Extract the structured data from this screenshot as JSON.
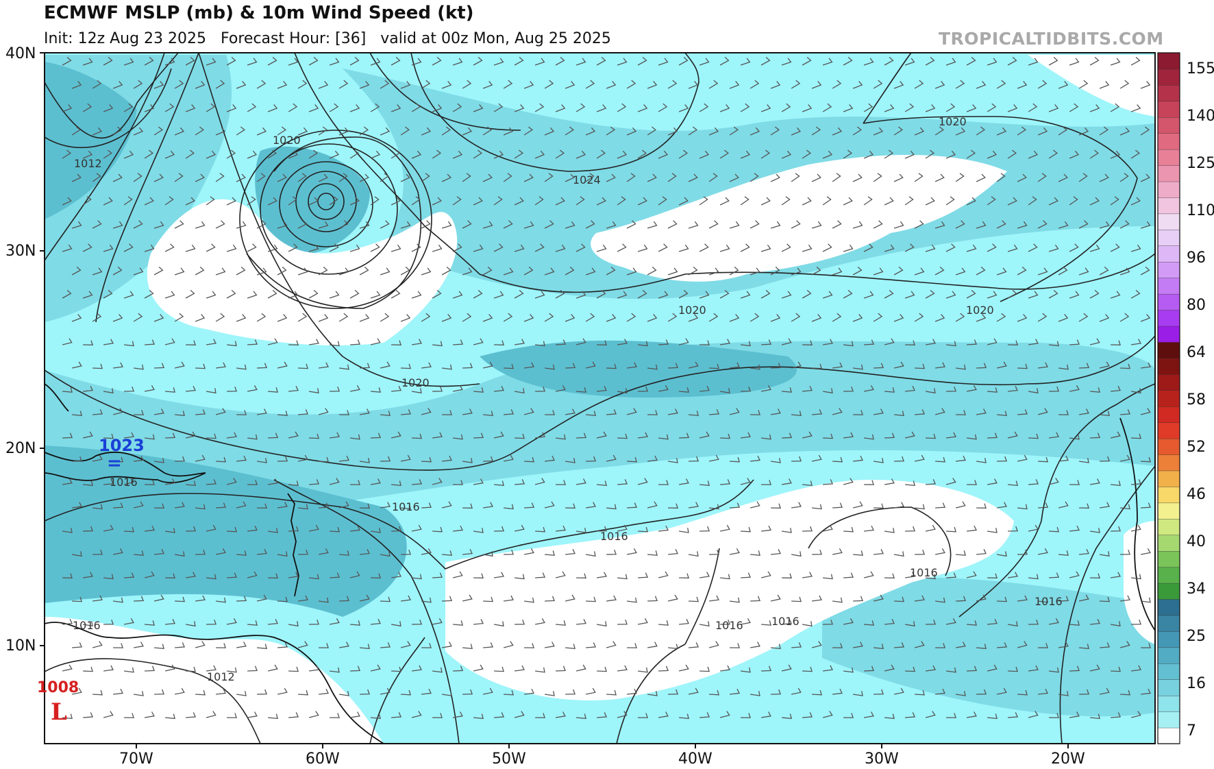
{
  "header": {
    "title": "ECMWF MSLP (mb) & 10m Wind Speed (kt)",
    "subtitle": "Init: 12z Aug 23 2025   Forecast Hour: [36]   valid at 00z Mon, Aug 25 2025",
    "watermark": "TROPICALTIDBITS.COM"
  },
  "map": {
    "lat_labels": [
      "40N",
      "30N",
      "20N",
      "10N"
    ],
    "lon_labels": [
      "70W",
      "60W",
      "50W",
      "40W",
      "30W",
      "20W"
    ],
    "isobar_labels": [
      "1012",
      "1020",
      "1024",
      "1020",
      "1020",
      "1020",
      "1020",
      "1016",
      "1016",
      "1016",
      "1016",
      "1016",
      "1016",
      "1016",
      "1016",
      "1012",
      "1012",
      "1012"
    ],
    "pressure_centers": [
      {
        "value": "1023",
        "type": "high",
        "color": "#1a3fd6"
      },
      {
        "value": "1008",
        "symbol": "L",
        "type": "low",
        "color": "#d62020"
      }
    ]
  },
  "colorbar": {
    "labels": [
      "155",
      "140",
      "125",
      "110",
      "96",
      "80",
      "64",
      "58",
      "52",
      "46",
      "40",
      "34",
      "25",
      "16",
      "7"
    ],
    "colors": [
      "#ffffff",
      "#a6f0f3",
      "#8fe3ea",
      "#78d1df",
      "#63bfd2",
      "#52acc4",
      "#4498b5",
      "#3a84a4",
      "#2d6f90",
      "#3a9a3a",
      "#58b14a",
      "#7ac45a",
      "#a6d870",
      "#d0e880",
      "#f3f090",
      "#f7d868",
      "#f2b04a",
      "#ec8038",
      "#e55a2e",
      "#e03a28",
      "#d02a22",
      "#b8221c",
      "#9e1a18",
      "#7e1412",
      "#5e0e0c",
      "#9a1ee6",
      "#a83cf0",
      "#b65cf2",
      "#c47cf4",
      "#d29cf6",
      "#deb8f6",
      "#e8cff6",
      "#f0dcf2",
      "#f1c4e0",
      "#eeacc8",
      "#eb95b0",
      "#e88098",
      "#e06a80",
      "#d4566c",
      "#c6435a",
      "#b4324a",
      "#a0243c",
      "#8c1a30"
    ]
  }
}
